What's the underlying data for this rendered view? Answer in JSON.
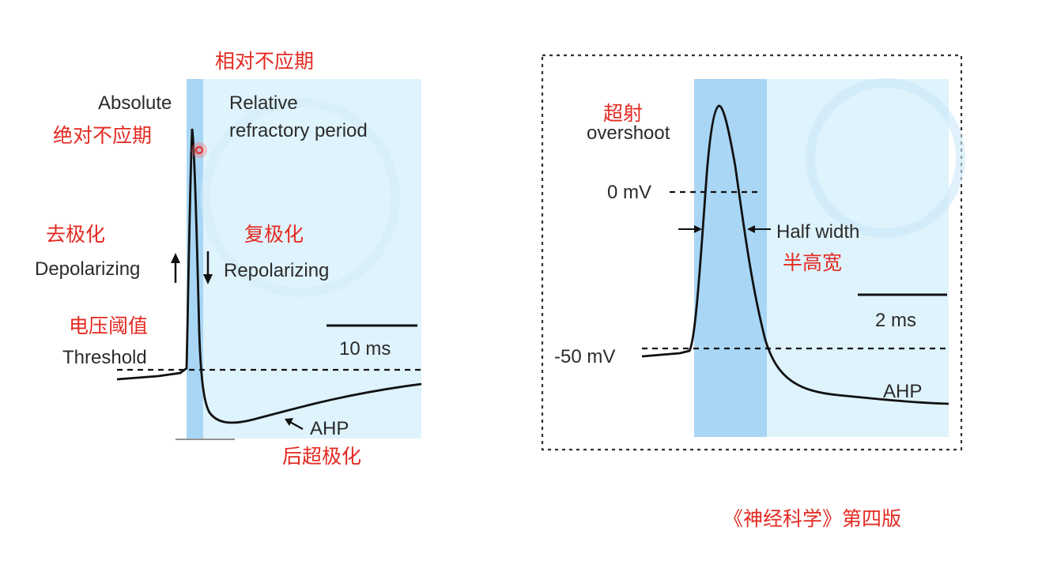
{
  "left_panel": {
    "title_cn": "相对不应期",
    "absolute_label": "Absolute",
    "absolute_cn": "绝对不应期",
    "relative_label_line1": "Relative",
    "relative_label_line2": "refractory period",
    "depol_cn": "去极化",
    "depol_label": "Depolarizing",
    "repol_cn": "复极化",
    "repol_label": "Repolarizing",
    "threshold_cn": "电压阈值",
    "threshold_label": "Threshold",
    "scale_label": "10 ms",
    "ahp_label": "AHP",
    "ahp_cn": "后超极化"
  },
  "right_panel": {
    "overshoot_cn": "超射",
    "overshoot_label": "overshoot",
    "zero_label": "0 mV",
    "half_width_label": "Half width",
    "half_width_cn": "半高宽",
    "scale_label": "2 ms",
    "rest_label": "-50 mV",
    "ahp_label": "AHP"
  },
  "citation": "《神经科学》第四版",
  "colors": {
    "absolute_band": "#a9d6f5",
    "relative_band": "#dff3fd",
    "annotation_red": "#e32a22",
    "trace": "#111111"
  }
}
